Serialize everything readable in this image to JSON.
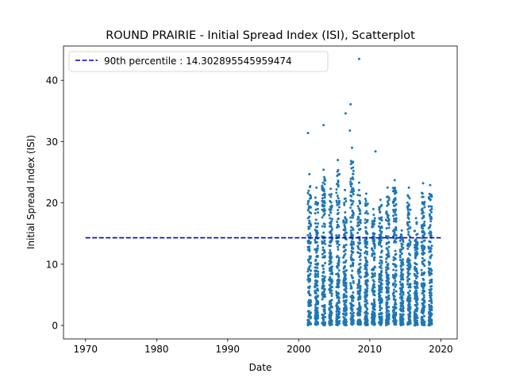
{
  "chart_data": {
    "type": "scatter",
    "title": "ROUND PRAIRIE - Initial Spread Index (ISI), Scatterplot",
    "xlabel": "Date",
    "ylabel": "Initial Spread Index (ISI)",
    "xlim": [
      1966.9,
      2022.3
    ],
    "ylim": [
      -2.2,
      45.6
    ],
    "xticks": [
      1970,
      1980,
      1990,
      2000,
      2010,
      2020
    ],
    "xtick_labels": [
      "1970",
      "1980",
      "1990",
      "2000",
      "2010",
      "2020"
    ],
    "yticks": [
      0,
      10,
      20,
      30,
      40
    ],
    "ytick_labels": [
      "0",
      "10",
      "20",
      "30",
      "40"
    ],
    "grid": false,
    "legend": {
      "placement": "top-left",
      "entries": [
        {
          "label": "90th percentile : 14.302895545959474",
          "style": "dashed-line",
          "color": "#0000cc"
        }
      ]
    },
    "reference_line": {
      "y": 14.302895545959474,
      "x_start": 1970,
      "x_end": 2020,
      "color": "#0000cc"
    },
    "series": [
      {
        "color": "#1f77b4",
        "seasons": [
          2001,
          2002,
          2003,
          2004,
          2005,
          2006,
          2007,
          2008,
          2009,
          2010,
          2011,
          2012,
          2013,
          2014,
          2015,
          2016,
          2017,
          2018
        ],
        "season_max": [
          24.7,
          22.5,
          25.4,
          22.3,
          27.0,
          22.1,
          29.0,
          23.3,
          21.5,
          19.0,
          20.5,
          22.5,
          23.7,
          15.5,
          22.5,
          17.5,
          23.2,
          22.9
        ],
        "season_count": 150,
        "outliers": [
          {
            "x": 2001.3,
            "y": 31.4
          },
          {
            "x": 2003.5,
            "y": 32.7
          },
          {
            "x": 2006.6,
            "y": 34.6
          },
          {
            "x": 2007.3,
            "y": 36.1
          },
          {
            "x": 2007.2,
            "y": 31.8
          },
          {
            "x": 2008.5,
            "y": 43.5
          },
          {
            "x": 2010.8,
            "y": 28.4
          }
        ]
      }
    ]
  }
}
